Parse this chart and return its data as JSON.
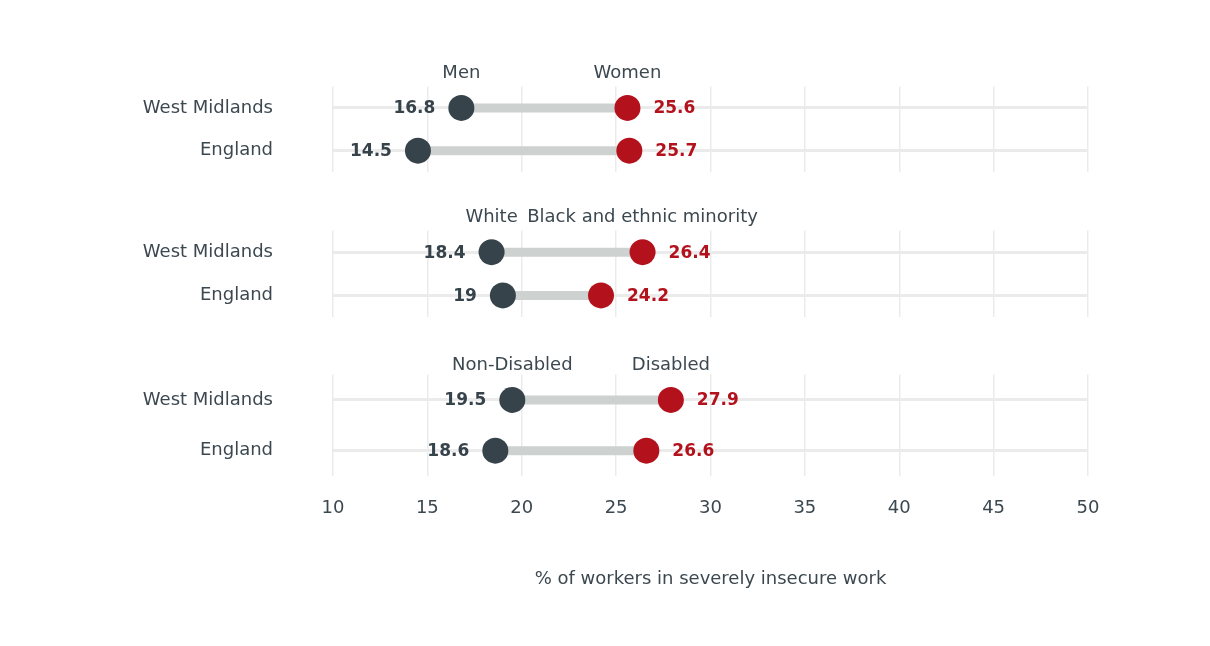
{
  "chart_data": [
    {
      "type": "scatter",
      "orientation": "horizontal",
      "categories": [
        "West Midlands",
        "England"
      ],
      "series": [
        {
          "name": "Men",
          "color": "#36434b",
          "values": [
            16.8,
            14.5
          ]
        },
        {
          "name": "Women",
          "color": "#b3121d",
          "values": [
            25.6,
            25.7
          ]
        }
      ],
      "xlim": [
        10,
        50
      ],
      "xticks": [
        10,
        15,
        20,
        25,
        30,
        35,
        40,
        45,
        50
      ],
      "grid": true,
      "data_labels": true,
      "marker": "circle",
      "tick_labels": "y"
    },
    {
      "type": "scatter",
      "orientation": "horizontal",
      "categories": [
        "West Midlands",
        "England"
      ],
      "series": [
        {
          "name": "White",
          "color": "#36434b",
          "values": [
            18.4,
            19
          ]
        },
        {
          "name": "Black and ethnic minority",
          "color": "#b3121d",
          "values": [
            26.4,
            24.2
          ]
        }
      ],
      "xlim": [
        10,
        50
      ],
      "xticks": [
        10,
        15,
        20,
        25,
        30,
        35,
        40,
        45,
        50
      ],
      "grid": true,
      "data_labels": true,
      "marker": "circle",
      "tick_labels": "y"
    },
    {
      "type": "scatter",
      "orientation": "horizontal",
      "categories": [
        "West Midlands",
        "England"
      ],
      "series": [
        {
          "name": "Non-Disabled",
          "color": "#36434b",
          "values": [
            19.5,
            18.6
          ]
        },
        {
          "name": "Disabled",
          "color": "#b3121d",
          "values": [
            27.9,
            26.6
          ]
        }
      ],
      "xlim": [
        10,
        50
      ],
      "xticks": [
        10,
        15,
        20,
        25,
        30,
        35,
        40,
        45,
        50
      ],
      "xlabel": "% of workers in severely insecure work",
      "grid": true,
      "data_labels": true,
      "marker": "circle"
    }
  ]
}
